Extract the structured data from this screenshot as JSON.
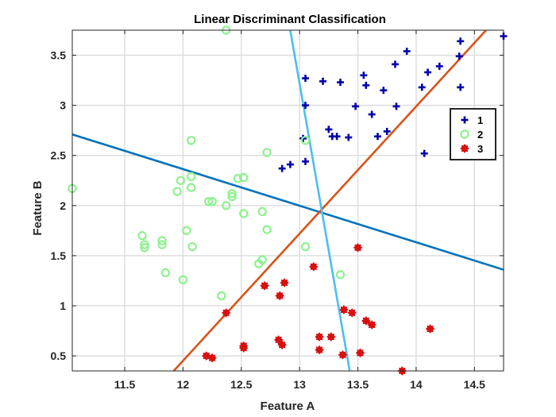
{
  "chart_data": {
    "type": "scatter",
    "title": "Linear Discriminant Classification",
    "xlabel": "Feature A",
    "ylabel": "Feature B",
    "xlim": [
      11.05,
      14.75
    ],
    "ylim": [
      0.35,
      3.75
    ],
    "xticks": [
      11.5,
      12,
      12.5,
      13,
      13.5,
      14,
      14.5
    ],
    "xtick_labels": [
      "11.5",
      "12",
      "12.5",
      "13",
      "13.5",
      "14",
      "14.5"
    ],
    "yticks": [
      0.5,
      1,
      1.5,
      2,
      2.5,
      3,
      3.5
    ],
    "ytick_labels": [
      "0.5",
      "1",
      "1.5",
      "2",
      "2.5",
      "3",
      "3.5"
    ],
    "grid": true,
    "legend_position": "right",
    "series": [
      {
        "name": "1",
        "marker": "plus",
        "color": "#0000a8",
        "points": [
          [
            13.05,
            3.27
          ],
          [
            13.2,
            3.24
          ],
          [
            13.35,
            3.23
          ],
          [
            13.05,
            3.0
          ],
          [
            13.55,
            3.3
          ],
          [
            13.57,
            3.2
          ],
          [
            13.72,
            3.15
          ],
          [
            13.82,
            3.41
          ],
          [
            13.92,
            3.54
          ],
          [
            14.05,
            3.18
          ],
          [
            14.1,
            3.33
          ],
          [
            14.2,
            3.39
          ],
          [
            14.38,
            3.64
          ],
          [
            14.37,
            3.49
          ],
          [
            14.38,
            3.18
          ],
          [
            14.75,
            3.69
          ],
          [
            13.48,
            2.99
          ],
          [
            13.62,
            2.91
          ],
          [
            13.83,
            2.99
          ],
          [
            13.25,
            2.76
          ],
          [
            13.28,
            2.69
          ],
          [
            13.32,
            2.69
          ],
          [
            13.42,
            2.68
          ],
          [
            13.67,
            2.69
          ],
          [
            13.75,
            2.74
          ],
          [
            13.03,
            2.67
          ],
          [
            14.07,
            2.52
          ],
          [
            12.85,
            2.37
          ],
          [
            12.92,
            2.41
          ],
          [
            13.05,
            2.44
          ]
        ]
      },
      {
        "name": "2",
        "marker": "circle",
        "color": "#8ef28e",
        "points": [
          [
            12.37,
            3.75
          ],
          [
            11.05,
            2.17
          ],
          [
            12.07,
            2.65
          ],
          [
            12.72,
            2.53
          ],
          [
            13.05,
            2.65
          ],
          [
            11.98,
            2.25
          ],
          [
            12.07,
            2.29
          ],
          [
            12.07,
            2.18
          ],
          [
            11.95,
            2.14
          ],
          [
            12.47,
            2.27
          ],
          [
            12.52,
            2.28
          ],
          [
            12.42,
            2.12
          ],
          [
            12.42,
            2.09
          ],
          [
            12.22,
            2.04
          ],
          [
            12.25,
            2.04
          ],
          [
            12.37,
            2.0
          ],
          [
            12.52,
            1.92
          ],
          [
            12.68,
            1.94
          ],
          [
            11.65,
            1.7
          ],
          [
            11.67,
            1.61
          ],
          [
            11.67,
            1.58
          ],
          [
            11.82,
            1.65
          ],
          [
            11.82,
            1.61
          ],
          [
            12.03,
            1.75
          ],
          [
            12.08,
            1.59
          ],
          [
            12.72,
            1.76
          ],
          [
            12.68,
            1.46
          ],
          [
            12.65,
            1.42
          ],
          [
            13.05,
            1.59
          ],
          [
            11.85,
            1.33
          ],
          [
            12.0,
            1.26
          ],
          [
            13.35,
            1.31
          ],
          [
            12.33,
            1.1
          ]
        ]
      },
      {
        "name": "3",
        "marker": "star",
        "color": "#d81010",
        "points": [
          [
            13.5,
            1.58
          ],
          [
            13.12,
            1.39
          ],
          [
            12.7,
            1.2
          ],
          [
            12.87,
            1.23
          ],
          [
            12.83,
            1.1
          ],
          [
            12.37,
            0.93
          ],
          [
            13.38,
            0.96
          ],
          [
            13.45,
            0.93
          ],
          [
            13.57,
            0.85
          ],
          [
            13.62,
            0.81
          ],
          [
            14.12,
            0.77
          ],
          [
            12.82,
            0.66
          ],
          [
            12.85,
            0.61
          ],
          [
            12.52,
            0.6
          ],
          [
            12.52,
            0.58
          ],
          [
            13.17,
            0.69
          ],
          [
            13.27,
            0.69
          ],
          [
            13.17,
            0.56
          ],
          [
            13.37,
            0.51
          ],
          [
            13.52,
            0.53
          ],
          [
            12.2,
            0.5
          ],
          [
            12.25,
            0.48
          ],
          [
            13.88,
            0.35
          ]
        ]
      }
    ],
    "lines": [
      {
        "color": "#0072bd",
        "x": [
          11.05,
          14.75
        ],
        "y": [
          2.71,
          1.36
        ]
      },
      {
        "color": "#d95319",
        "x": [
          11.92,
          14.6
        ],
        "y": [
          0.35,
          3.75
        ]
      },
      {
        "color": "#4dbeee",
        "x": [
          12.92,
          13.43
        ],
        "y": [
          3.75,
          0.35
        ]
      }
    ]
  }
}
